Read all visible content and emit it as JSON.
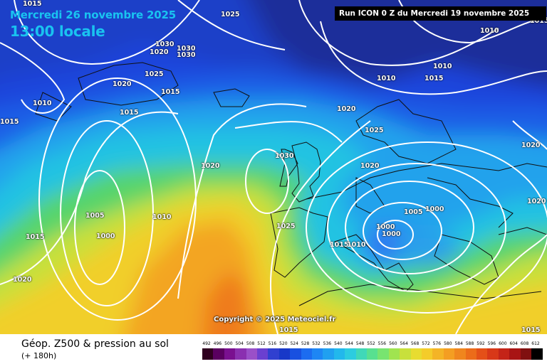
{
  "header": {
    "date": "Mercredi 26 novembre 2025",
    "local_time": "13:00 locale",
    "run_info": "Run ICON 0 Z du Mercredi 19 novembre 2025"
  },
  "map": {
    "copyright": "Copyright © 2025 Meteociel.fr",
    "isobar_labels": [
      "1015",
      "1025",
      "1010",
      "1015",
      "1030",
      "1030",
      "1030",
      "1020",
      "1025",
      "1020",
      "1015",
      "1010",
      "1015",
      "1015",
      "1020",
      "1025",
      "1010",
      "1010",
      "1015",
      "1020",
      "1030",
      "1020",
      "1005",
      "1010",
      "1000",
      "1015",
      "1020",
      "1025",
      "1020",
      "1015",
      "1010",
      "1000",
      "1005",
      "1000",
      "1000",
      "1020",
      "1015",
      "1015"
    ],
    "colors": {
      "deep_blue": "#1e2f9a",
      "blue": "#1f5fe6",
      "cyan": "#23b7ea",
      "green": "#57d46a",
      "yellow": "#f1de2c",
      "orange": "#f39b22",
      "isobar": "#ffffff"
    }
  },
  "legend": {
    "product": "Géop. Z500 & pression au sol",
    "lead_time": "(+ 180h)",
    "scale_values": [
      "492",
      "496",
      "500",
      "504",
      "508",
      "512",
      "516",
      "520",
      "524",
      "528",
      "532",
      "536",
      "540",
      "544",
      "548",
      "552",
      "556",
      "560",
      "564",
      "568",
      "572",
      "576",
      "580",
      "584",
      "588",
      "592",
      "596",
      "600",
      "604",
      "608",
      "612"
    ],
    "scale_colors": [
      "#300020",
      "#5a0060",
      "#7a1090",
      "#8a30b0",
      "#9a50c8",
      "#6a40d0",
      "#3040d0",
      "#1838c8",
      "#1850e0",
      "#1c6cf0",
      "#1e86f4",
      "#20a0f0",
      "#22b8ec",
      "#2ccce0",
      "#40d8b8",
      "#58e090",
      "#78e470",
      "#a0e450",
      "#c8e03c",
      "#e8dc30",
      "#f4cc2a",
      "#f4b426",
      "#f49e22",
      "#f0861e",
      "#ec6c1a",
      "#e45018",
      "#d83818",
      "#c42418",
      "#a81414",
      "#801010",
      "#000000"
    ]
  }
}
